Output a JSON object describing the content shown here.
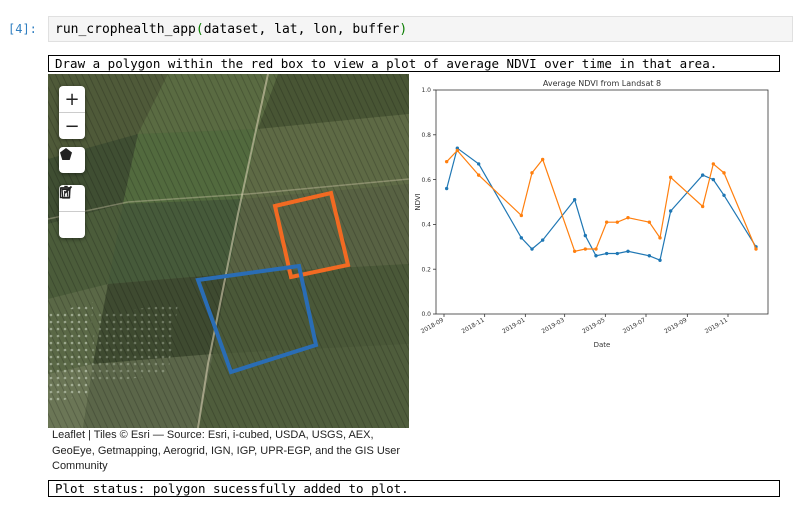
{
  "cell": {
    "prompt": "[4]:",
    "code_fn": "run_crophealth_app",
    "code_open": "(",
    "code_args": "dataset, lat, lon, buffer",
    "code_close": ")"
  },
  "instruction_text": "Draw a polygon within the red box to view a plot of average NDVI over time in that area.",
  "map": {
    "zoom_in_label": "+",
    "zoom_out_label": "−",
    "polygon_tool_icon": "pentagon-icon",
    "edit_tool_icon": "edit-icon",
    "delete_tool_icon": "trash-icon",
    "attribution_lines": [
      "Leaflet | Tiles © Esri — Source: Esri, i-cubed, USDA, USGS, AEX,",
      "GeoEye, Getmapping, Aerogrid, IGN, IGP, UPR-EGP, and the GIS User",
      "Community"
    ],
    "polygon_colors": {
      "blue": "#2a6db5",
      "orange": "#f26a22"
    }
  },
  "status_text": "Plot status: polygon sucessfully added to plot.",
  "chart_data": {
    "type": "line",
    "title": "Average NDVI from Landsat 8",
    "xlabel": "Date",
    "ylabel": "NDVI",
    "ylim": [
      0.0,
      1.0
    ],
    "yticks": [
      "0.0",
      "0.2",
      "0.4",
      "0.6",
      "0.8",
      "1.0"
    ],
    "xlim": [
      "2018-08-20",
      "2019-12-31"
    ],
    "xticks": [
      "2018-09",
      "2018-11",
      "2019-01",
      "2019-03",
      "2019-05",
      "2019-07",
      "2019-09",
      "2019-11"
    ],
    "grid": false,
    "series": [
      {
        "color": "#1f77b4",
        "points": [
          [
            "2018-09-05",
            0.56
          ],
          [
            "2018-09-21",
            0.74
          ],
          [
            "2018-10-23",
            0.67
          ],
          [
            "2018-12-26",
            0.34
          ],
          [
            "2019-01-11",
            0.29
          ],
          [
            "2019-01-27",
            0.33
          ],
          [
            "2019-03-16",
            0.51
          ],
          [
            "2019-04-01",
            0.35
          ],
          [
            "2019-04-17",
            0.26
          ],
          [
            "2019-05-03",
            0.27
          ],
          [
            "2019-05-19",
            0.27
          ],
          [
            "2019-06-04",
            0.28
          ],
          [
            "2019-07-06",
            0.26
          ],
          [
            "2019-07-22",
            0.24
          ],
          [
            "2019-08-07",
            0.46
          ],
          [
            "2019-09-24",
            0.62
          ],
          [
            "2019-10-10",
            0.6
          ],
          [
            "2019-10-26",
            0.53
          ],
          [
            "2019-12-13",
            0.3
          ]
        ]
      },
      {
        "color": "#ff7f0e",
        "points": [
          [
            "2018-09-05",
            0.68
          ],
          [
            "2018-09-21",
            0.73
          ],
          [
            "2018-10-23",
            0.62
          ],
          [
            "2018-12-26",
            0.44
          ],
          [
            "2019-01-11",
            0.63
          ],
          [
            "2019-01-27",
            0.69
          ],
          [
            "2019-03-16",
            0.28
          ],
          [
            "2019-04-01",
            0.29
          ],
          [
            "2019-04-17",
            0.29
          ],
          [
            "2019-05-03",
            0.41
          ],
          [
            "2019-05-19",
            0.41
          ],
          [
            "2019-06-04",
            0.43
          ],
          [
            "2019-07-06",
            0.41
          ],
          [
            "2019-07-22",
            0.34
          ],
          [
            "2019-08-07",
            0.61
          ],
          [
            "2019-09-24",
            0.48
          ],
          [
            "2019-10-10",
            0.67
          ],
          [
            "2019-10-26",
            0.63
          ],
          [
            "2019-12-13",
            0.29
          ]
        ]
      }
    ]
  }
}
